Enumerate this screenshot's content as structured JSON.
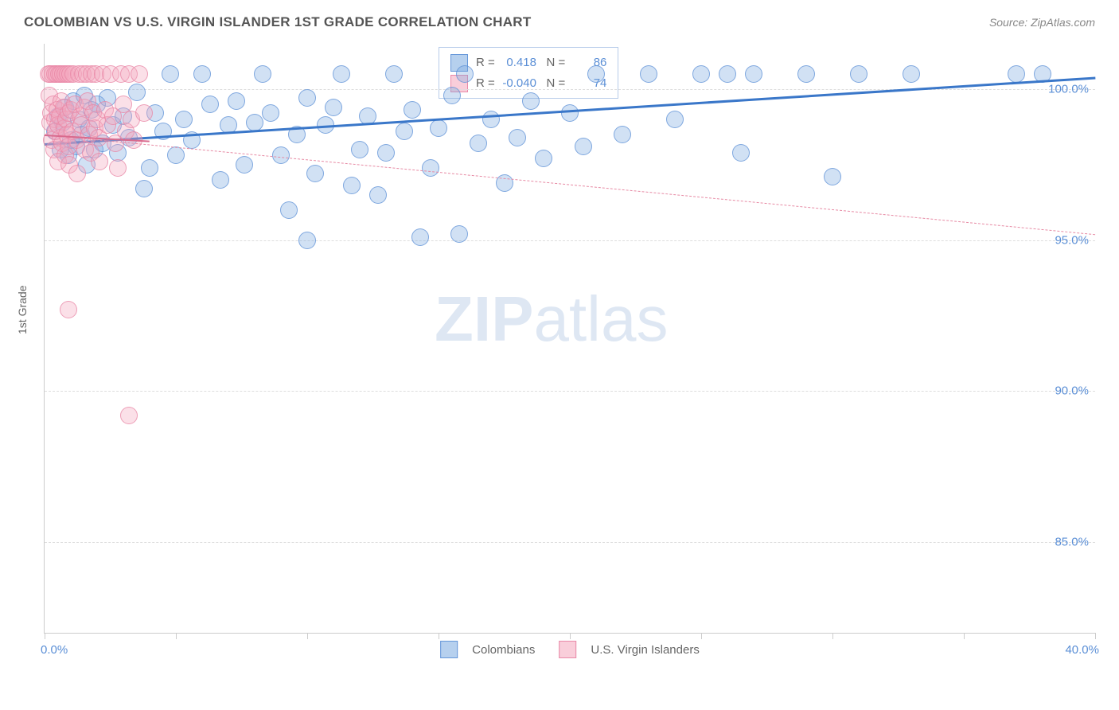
{
  "header": {
    "title": "COLOMBIAN VS U.S. VIRGIN ISLANDER 1ST GRADE CORRELATION CHART",
    "source": "Source: ZipAtlas.com"
  },
  "chart": {
    "type": "scatter",
    "ylabel": "1st Grade",
    "xlim": [
      0,
      40
    ],
    "ylim": [
      82,
      101.5
    ],
    "ytick_values": [
      85,
      90,
      95,
      100
    ],
    "ytick_labels": [
      "85.0%",
      "90.0%",
      "95.0%",
      "100.0%"
    ],
    "x_left_label": "0.0%",
    "x_right_label": "40.0%",
    "xtick_positions": [
      0,
      5,
      10,
      15,
      20,
      25,
      30,
      35,
      40
    ],
    "background_color": "#ffffff",
    "grid_color": "#dddddd",
    "series": [
      {
        "name": "Colombians",
        "color_fill": "rgba(122,169,224,0.35)",
        "color_stroke": "rgba(91,143,214,0.7)",
        "marker_radius_px": 10,
        "R": "0.418",
        "N": "86",
        "trend": {
          "x1": 0,
          "y1": 98.2,
          "x2": 40,
          "y2": 100.4,
          "color": "#3a77c9",
          "width": 3,
          "dashed": false
        },
        "points": [
          [
            0.4,
            98.6
          ],
          [
            0.5,
            99.1
          ],
          [
            0.6,
            98.0
          ],
          [
            0.7,
            98.9
          ],
          [
            0.8,
            99.4
          ],
          [
            0.9,
            97.8
          ],
          [
            1.0,
            98.3
          ],
          [
            1.1,
            99.6
          ],
          [
            1.2,
            98.1
          ],
          [
            1.3,
            99.0
          ],
          [
            1.4,
            98.5
          ],
          [
            1.5,
            99.8
          ],
          [
            1.6,
            97.5
          ],
          [
            1.7,
            98.7
          ],
          [
            1.8,
            99.3
          ],
          [
            1.9,
            98.0
          ],
          [
            2.0,
            99.5
          ],
          [
            2.2,
            98.2
          ],
          [
            2.4,
            99.7
          ],
          [
            2.6,
            98.8
          ],
          [
            2.8,
            97.9
          ],
          [
            3.0,
            99.1
          ],
          [
            3.2,
            98.4
          ],
          [
            3.5,
            99.9
          ],
          [
            3.8,
            96.7
          ],
          [
            4.0,
            97.4
          ],
          [
            4.2,
            99.2
          ],
          [
            4.5,
            98.6
          ],
          [
            4.8,
            100.5
          ],
          [
            5.0,
            97.8
          ],
          [
            5.3,
            99.0
          ],
          [
            5.6,
            98.3
          ],
          [
            6.0,
            100.5
          ],
          [
            6.3,
            99.5
          ],
          [
            6.7,
            97.0
          ],
          [
            7.0,
            98.8
          ],
          [
            7.3,
            99.6
          ],
          [
            7.6,
            97.5
          ],
          [
            8.0,
            98.9
          ],
          [
            8.3,
            100.5
          ],
          [
            8.6,
            99.2
          ],
          [
            9.0,
            97.8
          ],
          [
            9.3,
            96.0
          ],
          [
            9.6,
            98.5
          ],
          [
            10.0,
            99.7
          ],
          [
            10.0,
            95.0
          ],
          [
            10.3,
            97.2
          ],
          [
            10.7,
            98.8
          ],
          [
            11.0,
            99.4
          ],
          [
            11.3,
            100.5
          ],
          [
            11.7,
            96.8
          ],
          [
            12.0,
            98.0
          ],
          [
            12.3,
            99.1
          ],
          [
            12.7,
            96.5
          ],
          [
            13.0,
            97.9
          ],
          [
            13.3,
            100.5
          ],
          [
            13.7,
            98.6
          ],
          [
            14.0,
            99.3
          ],
          [
            14.3,
            95.1
          ],
          [
            14.7,
            97.4
          ],
          [
            15.0,
            98.7
          ],
          [
            15.5,
            99.8
          ],
          [
            15.8,
            95.2
          ],
          [
            16.0,
            100.5
          ],
          [
            16.5,
            98.2
          ],
          [
            17.0,
            99.0
          ],
          [
            17.5,
            96.9
          ],
          [
            18.0,
            98.4
          ],
          [
            18.5,
            99.6
          ],
          [
            19.0,
            97.7
          ],
          [
            20.0,
            99.2
          ],
          [
            20.5,
            98.1
          ],
          [
            21.0,
            100.5
          ],
          [
            22.0,
            98.5
          ],
          [
            23.0,
            100.5
          ],
          [
            24.0,
            99.0
          ],
          [
            25.0,
            100.5
          ],
          [
            26.0,
            100.5
          ],
          [
            26.5,
            97.9
          ],
          [
            27.0,
            100.5
          ],
          [
            29.0,
            100.5
          ],
          [
            30.0,
            97.1
          ],
          [
            31.0,
            100.5
          ],
          [
            33.0,
            100.5
          ],
          [
            37.0,
            100.5
          ],
          [
            38.0,
            100.5
          ]
        ]
      },
      {
        "name": "U.S. Virgin Islanders",
        "color_fill": "rgba(244,166,188,0.35)",
        "color_stroke": "rgba(231,130,162,0.7)",
        "marker_radius_px": 10,
        "R": "-0.040",
        "N": "74",
        "trend": {
          "x1": 0,
          "y1": 98.5,
          "x2": 40,
          "y2": 95.2,
          "color": "#e78aa4",
          "width": 1.5,
          "dashed": true
        },
        "solid_trend": {
          "x1": 0,
          "y1": 98.5,
          "x2": 4,
          "y2": 98.3,
          "color": "#d96b8e",
          "width": 2.5
        },
        "points": [
          [
            0.15,
            100.5
          ],
          [
            0.18,
            99.8
          ],
          [
            0.2,
            98.9
          ],
          [
            0.22,
            100.5
          ],
          [
            0.25,
            99.2
          ],
          [
            0.28,
            98.3
          ],
          [
            0.3,
            100.5
          ],
          [
            0.32,
            99.5
          ],
          [
            0.35,
            98.0
          ],
          [
            0.38,
            100.5
          ],
          [
            0.4,
            99.0
          ],
          [
            0.42,
            98.6
          ],
          [
            0.45,
            100.5
          ],
          [
            0.48,
            99.3
          ],
          [
            0.5,
            98.8
          ],
          [
            0.52,
            97.6
          ],
          [
            0.55,
            100.5
          ],
          [
            0.58,
            99.1
          ],
          [
            0.6,
            98.4
          ],
          [
            0.62,
            100.5
          ],
          [
            0.65,
            99.6
          ],
          [
            0.68,
            98.2
          ],
          [
            0.7,
            100.5
          ],
          [
            0.72,
            99.4
          ],
          [
            0.75,
            98.7
          ],
          [
            0.78,
            97.8
          ],
          [
            0.8,
            100.5
          ],
          [
            0.82,
            99.0
          ],
          [
            0.85,
            98.5
          ],
          [
            0.88,
            100.5
          ],
          [
            0.9,
            99.2
          ],
          [
            0.92,
            98.1
          ],
          [
            0.95,
            97.5
          ],
          [
            0.98,
            100.5
          ],
          [
            1.0,
            99.3
          ],
          [
            1.05,
            98.6
          ],
          [
            1.1,
            100.5
          ],
          [
            1.15,
            99.5
          ],
          [
            1.2,
            98.3
          ],
          [
            1.25,
            97.2
          ],
          [
            1.3,
            100.5
          ],
          [
            1.35,
            99.1
          ],
          [
            1.4,
            98.8
          ],
          [
            1.45,
            100.5
          ],
          [
            1.5,
            99.4
          ],
          [
            1.55,
            98.0
          ],
          [
            1.6,
            100.5
          ],
          [
            1.65,
            99.6
          ],
          [
            1.7,
            98.5
          ],
          [
            1.75,
            97.9
          ],
          [
            1.8,
            100.5
          ],
          [
            1.85,
            99.2
          ],
          [
            1.9,
            98.7
          ],
          [
            1.95,
            100.5
          ],
          [
            2.0,
            99.0
          ],
          [
            2.05,
            98.4
          ],
          [
            2.1,
            97.6
          ],
          [
            2.2,
            100.5
          ],
          [
            2.3,
            99.3
          ],
          [
            2.4,
            98.8
          ],
          [
            2.5,
            100.5
          ],
          [
            2.6,
            99.1
          ],
          [
            2.7,
            98.2
          ],
          [
            2.8,
            97.4
          ],
          [
            2.9,
            100.5
          ],
          [
            3.0,
            99.5
          ],
          [
            3.1,
            98.6
          ],
          [
            3.2,
            100.5
          ],
          [
            3.3,
            99.0
          ],
          [
            3.4,
            98.3
          ],
          [
            3.6,
            100.5
          ],
          [
            3.8,
            99.2
          ],
          [
            0.9,
            92.7
          ],
          [
            3.2,
            89.2
          ]
        ]
      }
    ],
    "legend_box": {
      "rows": [
        {
          "swatch": "swatch-blue",
          "r_label": "R",
          "r_val": "0.418",
          "n_label": "N",
          "n_val": "86"
        },
        {
          "swatch": "swatch-pink",
          "r_label": "R",
          "r_val": "-0.040",
          "n_label": "N",
          "n_val": "74"
        }
      ]
    },
    "bottom_legend": [
      {
        "swatch": "swatch-blue",
        "label": "Colombians"
      },
      {
        "swatch": "swatch-pink",
        "label": "U.S. Virgin Islanders"
      }
    ],
    "watermark": {
      "bold": "ZIP",
      "light": "atlas"
    }
  }
}
